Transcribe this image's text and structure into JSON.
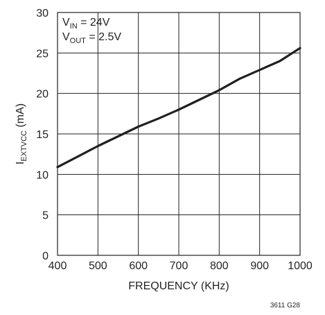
{
  "chart_data": {
    "type": "line",
    "xlabel": "FREQUENCY (KHz)",
    "ylabel": {
      "main": "I",
      "sub": "EXTVCC",
      "unit": " (mA)"
    },
    "xlim": [
      400,
      1000
    ],
    "ylim": [
      0,
      30
    ],
    "x_ticks": [
      "400",
      "500",
      "600",
      "700",
      "800",
      "900",
      "1000"
    ],
    "y_ticks": [
      "0",
      "5",
      "10",
      "15",
      "20",
      "25",
      "30"
    ],
    "grid": true,
    "annotations": [
      {
        "main": "V",
        "sub": "IN",
        "rest": " = 24V"
      },
      {
        "main": "V",
        "sub": "OUT",
        "rest": " = 2.5V"
      }
    ],
    "series": [
      {
        "x": [
          400,
          450,
          500,
          550,
          600,
          650,
          700,
          750,
          800,
          850,
          900,
          950,
          1000
        ],
        "values": [
          10.9,
          12.2,
          13.5,
          14.7,
          15.9,
          16.9,
          18.0,
          19.2,
          20.4,
          21.8,
          22.9,
          24.0,
          25.6
        ]
      }
    ]
  },
  "figure_code": "3611 G28"
}
